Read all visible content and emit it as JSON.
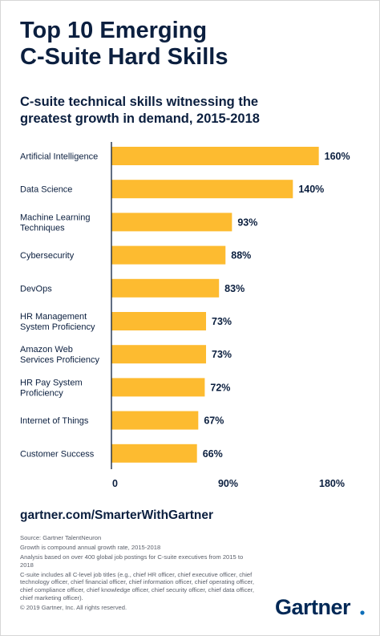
{
  "header": {
    "title_line1": "Top 10 Emerging",
    "title_line2": "C-Suite Hard Skills",
    "subtitle_line1": "C-suite technical skills witnessing the",
    "subtitle_line2": "greatest growth in demand, 2015-2018"
  },
  "chart_data": {
    "type": "bar",
    "orientation": "horizontal",
    "categories": [
      [
        "Artificial Intelligence"
      ],
      [
        "Data Science"
      ],
      [
        "Machine Learning",
        "Techniques"
      ],
      [
        "Cybersecurity"
      ],
      [
        "DevOps"
      ],
      [
        "HR Management",
        "System Proficiency"
      ],
      [
        "Amazon Web",
        "Services Proficiency"
      ],
      [
        "HR Pay System",
        "Proficiency"
      ],
      [
        "Internet of Things"
      ],
      [
        "Customer Success"
      ]
    ],
    "values": [
      160,
      140,
      93,
      88,
      83,
      73,
      73,
      72,
      67,
      66
    ],
    "value_labels": [
      "160%",
      "140%",
      "93%",
      "88%",
      "83%",
      "73%",
      "73%",
      "72%",
      "67%",
      "66%"
    ],
    "xlim": [
      0,
      180
    ],
    "x_ticks": [
      0,
      90,
      180
    ],
    "x_tick_labels": [
      "0",
      "90%",
      "180%"
    ],
    "bar_color": "#fdbb30",
    "grid": false
  },
  "footer": {
    "url": "gartner.com/SmarterWithGartner",
    "source": "Source: Gartner TalentNeuron",
    "note1": "Growth is compound annual growth rate, 2015-2018",
    "note2": "Analysis based on over 400 global job postings for C-suite executives from 2015 to 2018",
    "note3": "C-suite includes all C-level job titles (e.g., chief HR officer, chief executive officer, chief technology officer, chief financial officer, chief information officer, chief operating officer, chief compliance officer, chief knowledge officer, chief security officer, chief data officer, chief marketing officer).",
    "copyright": "© 2019 Gartner, Inc. All rights reserved.",
    "logo_text": "Gartner",
    "logo_color": "#002856",
    "logo_dot_color": "#0d6eb8"
  }
}
